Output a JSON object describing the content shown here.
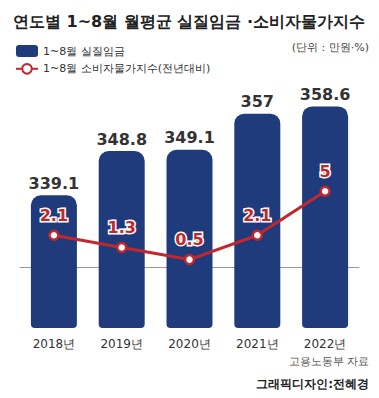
{
  "chart_data": {
    "type": "bar",
    "title": "연도별 1~8월 월평균 실질임금 ·소비자물가지수",
    "unit": "(단위 : 만원·%)",
    "categories": [
      "2018년",
      "2019년",
      "2020년",
      "2021년",
      "2022년"
    ],
    "series": [
      {
        "name": "1~8월 실질임금",
        "type": "bar",
        "color": "#1f3b7c",
        "values": [
          339.1,
          348.8,
          349.1,
          357,
          358.6
        ]
      },
      {
        "name": "1~8월 소비자물가지수(전년대비)",
        "type": "line",
        "axis": "y2",
        "color": "#c1272d",
        "marker": "circle",
        "values": [
          2.1,
          1.3,
          0.5,
          2.1,
          5
        ]
      }
    ],
    "ylim": [
      310,
      360
    ],
    "yticks": [
      310,
      360
    ],
    "y2lim": [
      -4,
      11
    ],
    "y2ticks": [
      -4,
      11
    ],
    "data_labels": true,
    "tick_labels": "x",
    "legend": "top-left",
    "source": "고용노동부 자료",
    "credit": "그래픽디자인:전혜경"
  }
}
